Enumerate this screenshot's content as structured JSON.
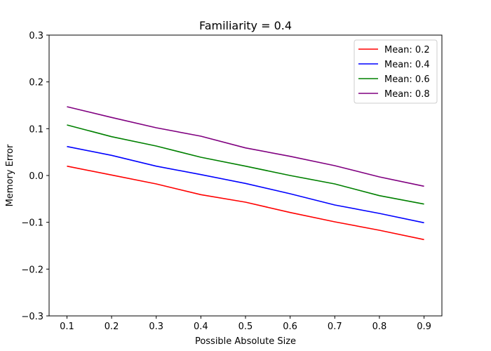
{
  "chart_data": {
    "type": "line",
    "title": "Familiarity = 0.4",
    "xlabel": "Possible Absolute Size",
    "ylabel": "Memory Error",
    "x": [
      0.1,
      0.2,
      0.3,
      0.4,
      0.5,
      0.6,
      0.7,
      0.8,
      0.9
    ],
    "x_ticks": [
      "0.1",
      "0.2",
      "0.3",
      "0.4",
      "0.5",
      "0.6",
      "0.7",
      "0.8",
      "0.9"
    ],
    "y_ticks": [
      "−0.3",
      "−0.2",
      "−0.1",
      "0.0",
      "0.1",
      "0.2",
      "0.3"
    ],
    "y_tick_values": [
      -0.3,
      -0.2,
      -0.1,
      0.0,
      0.1,
      0.2,
      0.3
    ],
    "xlim": [
      0.06,
      0.94
    ],
    "ylim": [
      -0.3,
      0.3
    ],
    "grid": false,
    "legend_position": "top-right",
    "series": [
      {
        "name": "Mean: 0.2",
        "color": "#ff0000",
        "values": [
          0.02,
          0.001,
          -0.018,
          -0.041,
          -0.057,
          -0.079,
          -0.099,
          -0.117,
          -0.137
        ]
      },
      {
        "name": "Mean: 0.4",
        "color": "#0000ff",
        "values": [
          0.062,
          0.043,
          0.02,
          0.002,
          -0.017,
          -0.039,
          -0.063,
          -0.081,
          -0.101
        ]
      },
      {
        "name": "Mean: 0.6",
        "color": "#008000",
        "values": [
          0.108,
          0.083,
          0.063,
          0.039,
          0.02,
          0.0,
          -0.018,
          -0.043,
          -0.061
        ]
      },
      {
        "name": "Mean: 0.8",
        "color": "#800080",
        "values": [
          0.147,
          0.124,
          0.102,
          0.084,
          0.059,
          0.041,
          0.021,
          -0.003,
          -0.023
        ]
      }
    ]
  }
}
